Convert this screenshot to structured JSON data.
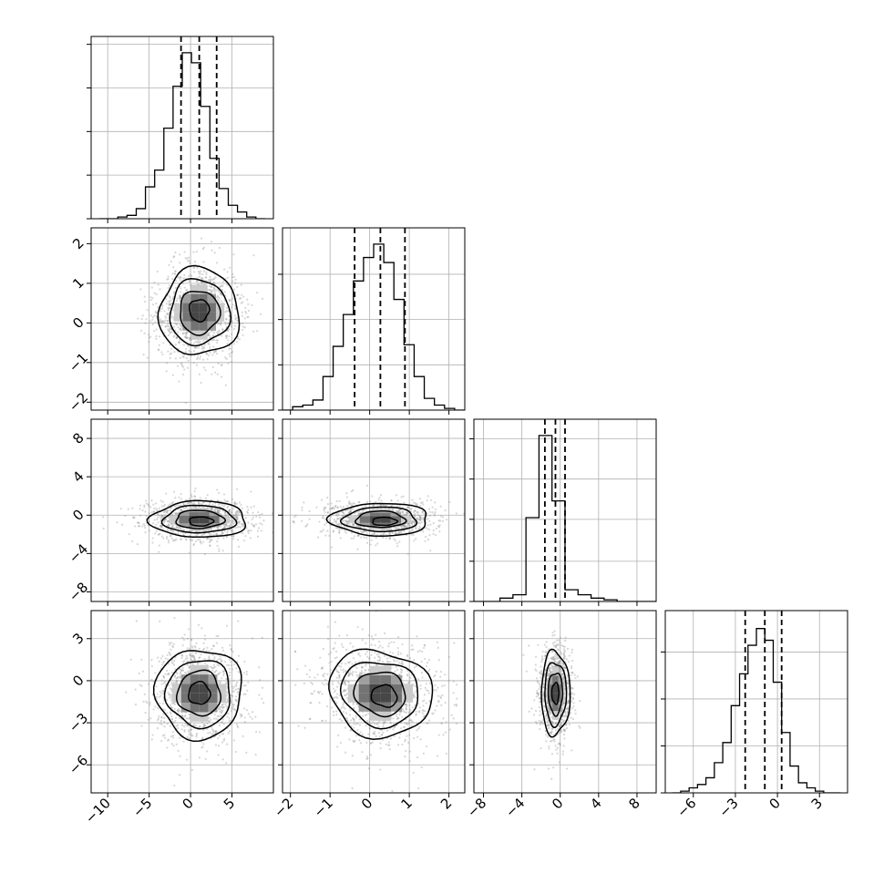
{
  "chart_data": {
    "type": "corner",
    "grid": true,
    "n_params": 4,
    "params": [
      {
        "range": [
          -12.0,
          10.0
        ],
        "ticks": [
          -10,
          -5,
          0,
          5
        ],
        "tick_labels": [
          "−10",
          "−5",
          "0",
          "5"
        ],
        "quantiles": [
          -1.15,
          1.05,
          3.15
        ],
        "hist_range": [
          -11.0,
          9.0
        ],
        "hist_counts": [
          0.0,
          0.0,
          0.01,
          0.02,
          0.06,
          0.19,
          0.29,
          0.54,
          0.79,
          0.99,
          0.93,
          0.67,
          0.36,
          0.18,
          0.08,
          0.04,
          0.01,
          0.0
        ],
        "hist_ytick_fracs": [
          0.0,
          0.26,
          0.52,
          0.78,
          1.04
        ]
      },
      {
        "range": [
          -2.2,
          2.4
        ],
        "ticks": [
          -2,
          -1,
          0,
          1,
          2
        ],
        "tick_labels": [
          "−2",
          "−1",
          "0",
          "1",
          "2"
        ],
        "quantiles": [
          -0.38,
          0.27,
          0.89
        ],
        "hist_range": [
          -2.2,
          2.4
        ],
        "hist_counts": [
          0.0,
          0.02,
          0.03,
          0.06,
          0.2,
          0.38,
          0.57,
          0.77,
          0.91,
          0.99,
          0.88,
          0.66,
          0.39,
          0.2,
          0.07,
          0.03,
          0.01,
          0.0
        ],
        "hist_ytick_fracs": [
          0.0,
          0.27,
          0.54,
          0.81
        ]
      },
      {
        "range": [
          -9.0,
          10.0
        ],
        "ticks": [
          -8,
          -4,
          0,
          4,
          8
        ],
        "tick_labels": [
          "−8",
          "−4",
          "0",
          "4",
          "8"
        ],
        "quantiles": [
          -1.6,
          -0.5,
          0.5
        ],
        "hist_range": [
          -9.0,
          10.0
        ],
        "hist_counts": [
          0.0,
          0.0,
          0.02,
          0.04,
          0.5,
          0.99,
          0.6,
          0.07,
          0.04,
          0.02,
          0.01,
          0.0,
          0.0,
          0.0
        ],
        "hist_ytick_fracs": [
          0.0,
          0.24,
          0.49,
          0.73,
          0.97
        ]
      },
      {
        "range": [
          -8.0,
          5.0
        ],
        "ticks": [
          -6,
          -3,
          0,
          3
        ],
        "tick_labels": [
          "−6",
          "−3",
          "0",
          "3"
        ],
        "quantiles": [
          -2.3,
          -0.9,
          0.3
        ],
        "hist_range": [
          -7.5,
          4.5
        ],
        "hist_counts": [
          0.0,
          0.01,
          0.03,
          0.05,
          0.09,
          0.18,
          0.3,
          0.52,
          0.71,
          0.88,
          0.98,
          0.91,
          0.66,
          0.36,
          0.16,
          0.06,
          0.03,
          0.01,
          0.0,
          0.0
        ],
        "hist_ytick_fracs": [
          0.0,
          0.28,
          0.56,
          0.84
        ]
      }
    ],
    "pairs": [
      {
        "row": 1,
        "col": 0,
        "center": [
          1.05,
          0.27
        ],
        "sigma": [
          2.4,
          0.55
        ],
        "corr": 0.0,
        "dense_offset": [
          0.0,
          0.05
        ]
      },
      {
        "row": 2,
        "col": 0,
        "center": [
          1.05,
          -0.45
        ],
        "sigma": [
          2.9,
          0.95
        ],
        "corr": 0.0,
        "dense_offset": [
          0.2,
          -0.2
        ]
      },
      {
        "row": 2,
        "col": 1,
        "center": [
          0.27,
          -0.45
        ],
        "sigma": [
          0.62,
          0.85
        ],
        "corr": 0.0,
        "dense_offset": [
          0.1,
          -0.2
        ]
      },
      {
        "row": 3,
        "col": 0,
        "center": [
          1.05,
          -0.9
        ],
        "sigma": [
          2.6,
          1.6
        ],
        "corr": 0.0,
        "dense_offset": [
          0.0,
          0.0
        ]
      },
      {
        "row": 3,
        "col": 1,
        "center": [
          0.27,
          -0.9
        ],
        "sigma": [
          0.65,
          1.55
        ],
        "corr": -0.1,
        "dense_offset": [
          0.1,
          -0.2
        ]
      },
      {
        "row": 3,
        "col": 2,
        "center": [
          -0.5,
          -0.9
        ],
        "sigma": [
          0.75,
          1.5
        ],
        "corr": 0.0,
        "dense_offset": [
          0.0,
          0.0
        ]
      }
    ],
    "contour_levels_sigma": [
      0.5,
      1.0,
      1.5,
      2.0
    ],
    "title": "",
    "xlabel": "",
    "ylabel": ""
  }
}
